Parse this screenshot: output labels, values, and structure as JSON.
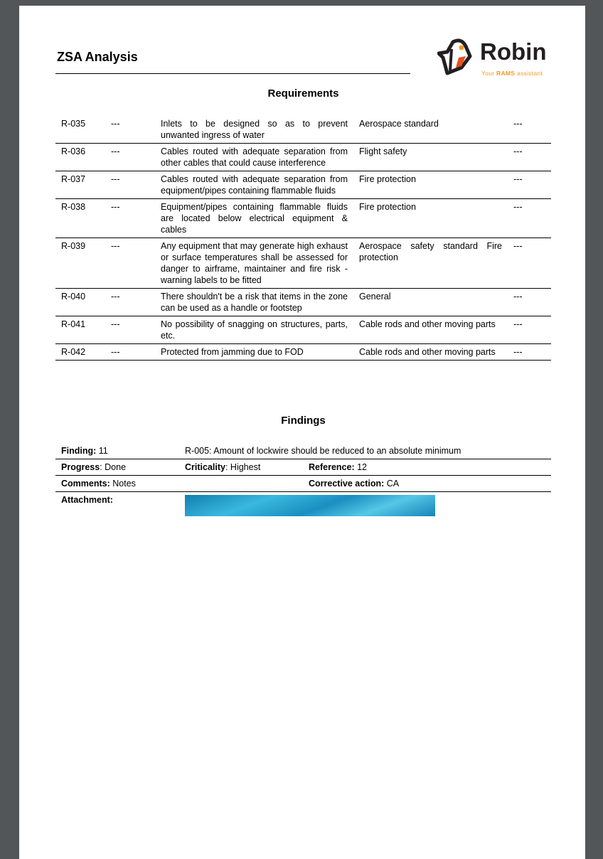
{
  "title": "ZSA Analysis",
  "logo": {
    "name": "Robin",
    "tagline_pre": "Your ",
    "tagline_bold": "RAMS",
    "tagline_post": " assistant",
    "colors": {
      "orange": "#f29a1f",
      "red": "#e8501e",
      "dark": "#231f20"
    }
  },
  "requirements": {
    "heading": "Requirements",
    "rows": [
      {
        "id": "R-035",
        "ref": "---",
        "text": "Inlets to be designed so as to prevent unwanted ingress of water",
        "category": "Aerospace standard",
        "extra": "---"
      },
      {
        "id": "R-036",
        "ref": "---",
        "text": "Cables routed with adequate separation from other cables that could cause interference",
        "category": "Flight safety",
        "extra": "---"
      },
      {
        "id": "R-037",
        "ref": "---",
        "text": "Cables routed with adequate separation from equipment/pipes containing flammable fluids",
        "category": "Fire protection",
        "extra": "---"
      },
      {
        "id": "R-038",
        "ref": "---",
        "text": "Equipment/pipes containing flammable fluids are located below electrical equipment & cables",
        "category": "Fire protection",
        "extra": "---"
      },
      {
        "id": "R-039",
        "ref": "---",
        "text": "Any equipment that may generate high exhaust or surface temperatures shall be assessed for danger to airframe, maintainer and fire risk - warning labels to be fitted",
        "category": "Aerospace safety standard Fire protection",
        "extra": "---"
      },
      {
        "id": "R-040",
        "ref": "---",
        "text": "There shouldn't be a risk that items in the zone can be used as a handle or footstep",
        "category": "General",
        "extra": "---"
      },
      {
        "id": "R-041",
        "ref": "---",
        "text": "No possibility of snagging on structures, parts, etc.",
        "category": "Cable rods and other moving parts",
        "extra": "---"
      },
      {
        "id": "R-042",
        "ref": "---",
        "text": "Protected from jamming due to FOD",
        "category": "Cable rods and other moving parts",
        "extra": "---"
      }
    ]
  },
  "findings": {
    "heading": "Findings",
    "finding_label": "Finding:",
    "finding_value": " 11",
    "finding_text": "R-005: Amount of lockwire should be reduced to an absolute minimum",
    "progress_label": "Progress",
    "progress_value": ": Done",
    "criticality_label": "Criticality",
    "criticality_value": ": Highest",
    "reference_label": "Reference:",
    "reference_value": " 12",
    "comments_label": "Comments:",
    "comments_value": " Notes",
    "corrective_label": "Corrective action:",
    "corrective_value": " CA",
    "attachment_label": "Attachment:"
  }
}
